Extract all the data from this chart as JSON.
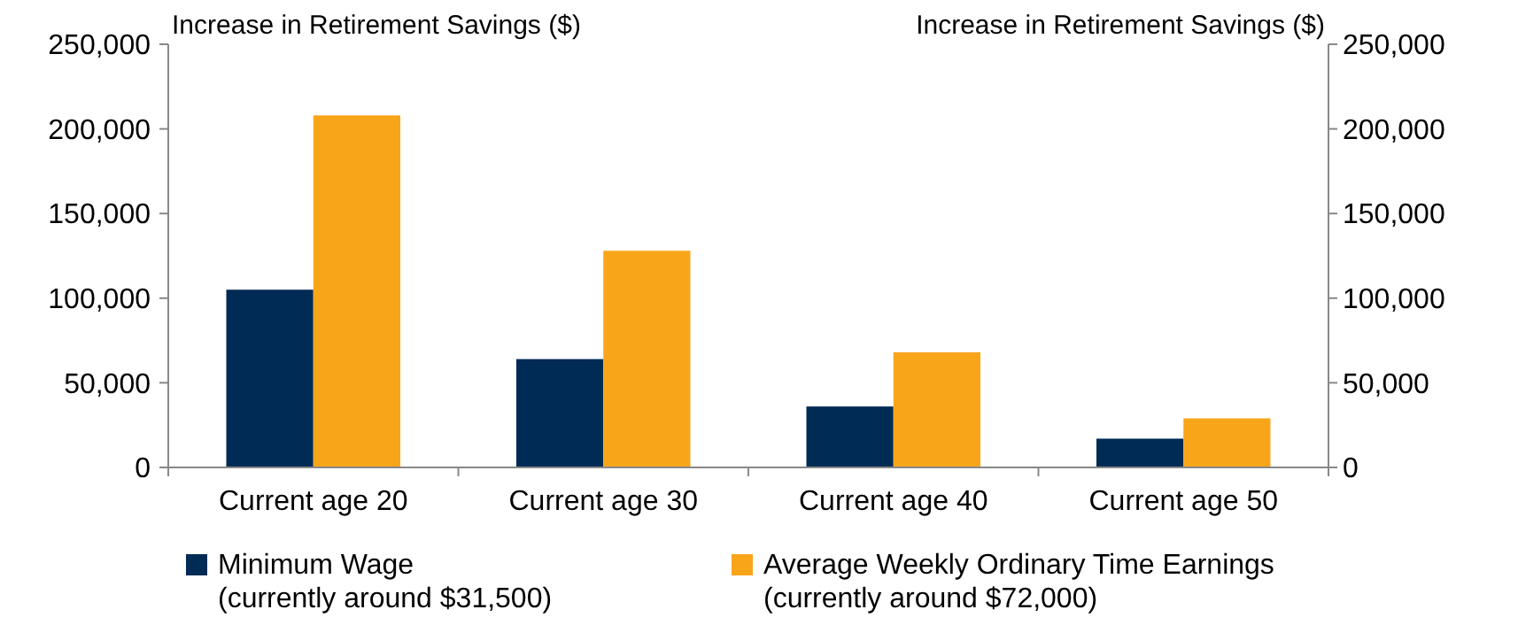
{
  "chart_data": {
    "type": "bar",
    "ylabel": "Increase in Retirement Savings ($)",
    "y2label": "Increase in Retirement Savings ($)",
    "categories": [
      "Current age 20",
      "Current age 30",
      "Current age 40",
      "Current age 50"
    ],
    "series": [
      {
        "name": "Minimum Wage\n(currently around $31,500)",
        "color": "#002b54",
        "values": [
          105000,
          64000,
          36000,
          17000
        ]
      },
      {
        "name": "Average Weekly Ordinary Time Earnings\n(currently around $72,000)",
        "color": "#f9a51a",
        "values": [
          208000,
          128000,
          68000,
          29000
        ]
      }
    ],
    "ylim": [
      0,
      250000
    ],
    "yticks": [
      {
        "value": 0,
        "label": "0"
      },
      {
        "value": 50000,
        "label": "50,000"
      },
      {
        "value": 100000,
        "label": "100,000"
      },
      {
        "value": 150000,
        "label": "150,000"
      },
      {
        "value": 200000,
        "label": "200,000"
      },
      {
        "value": 250000,
        "label": "250,000"
      }
    ],
    "y2lim": [
      0,
      250000
    ],
    "y2ticks": [
      {
        "value": 0,
        "label": "0"
      },
      {
        "value": 50000,
        "label": "50,000"
      },
      {
        "value": 100000,
        "label": "100,000"
      },
      {
        "value": 150000,
        "label": "150,000"
      },
      {
        "value": 200000,
        "label": "200,000"
      },
      {
        "value": 250000,
        "label": "250,000"
      }
    ],
    "grid": false,
    "legend": "bottom"
  }
}
